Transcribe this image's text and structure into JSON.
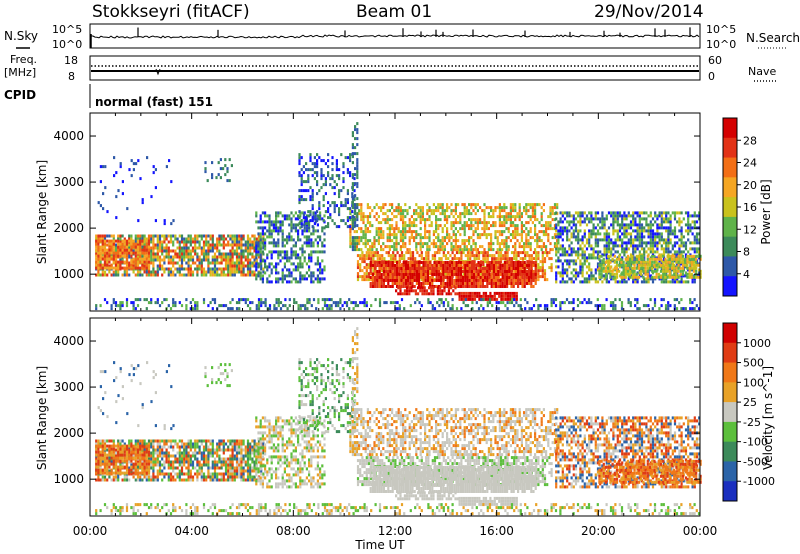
{
  "header": {
    "station": "Stokkseyri (fitACF)",
    "beam": "Beam 01",
    "date": "29/Nov/2014"
  },
  "strip_labels": {
    "nsky": "N.Sky",
    "nsky_hi": "10^5",
    "nsky_lo": "10^0",
    "nsearch": "N.Search",
    "ns_hi": "10^5",
    "ns_lo": "10^0",
    "freq": "Freq.",
    "freq_unit": "[MHz]",
    "freq_hi": "18",
    "freq_lo": "8",
    "nave": "Nave",
    "nave_hi": "60",
    "nave_lo": "0",
    "cpid": "CPID",
    "mode": "normal (fast) 151"
  },
  "colors": {
    "power_scale": [
      "#1414ff",
      "#2e58a8",
      "#3c8a5a",
      "#5fb34a",
      "#c9c21d",
      "#f5a623",
      "#f36f16",
      "#e23216",
      "#d40000"
    ],
    "velocity_scale": [
      "#1a2fbf",
      "#2b64a8",
      "#3c8a5a",
      "#5cbf3c",
      "#c8c8c0",
      "#e8a228",
      "#f07818",
      "#e03c14",
      "#d00000"
    ]
  },
  "chart_data": [
    {
      "type": "heatmap",
      "name": "power",
      "xlabel": "",
      "ylabel": "Slant Range [km]",
      "xlim": [
        "00:00",
        "00:00"
      ],
      "ylim": [
        200,
        4500
      ],
      "y_ticks": [
        "1000",
        "2000",
        "3000",
        "4000"
      ],
      "colorbar": {
        "label": "Power [dB]",
        "ticks": [
          "28",
          "24",
          "20",
          "16",
          "12",
          "8",
          "4"
        ]
      }
    },
    {
      "type": "heatmap",
      "name": "velocity",
      "xlabel": "Time UT",
      "ylabel": "Slant Range [km]",
      "x_ticks": [
        "00:00",
        "04:00",
        "08:00",
        "12:00",
        "16:00",
        "20:00",
        "00:00"
      ],
      "ylim": [
        200,
        4500
      ],
      "y_ticks": [
        "1000",
        "2000",
        "3000",
        "4000"
      ],
      "colorbar": {
        "label": "Velocity [m s^-1]",
        "ticks": [
          "1000",
          "500",
          "100",
          "25",
          "-25",
          "-100",
          "-500",
          "-1000"
        ]
      }
    }
  ]
}
